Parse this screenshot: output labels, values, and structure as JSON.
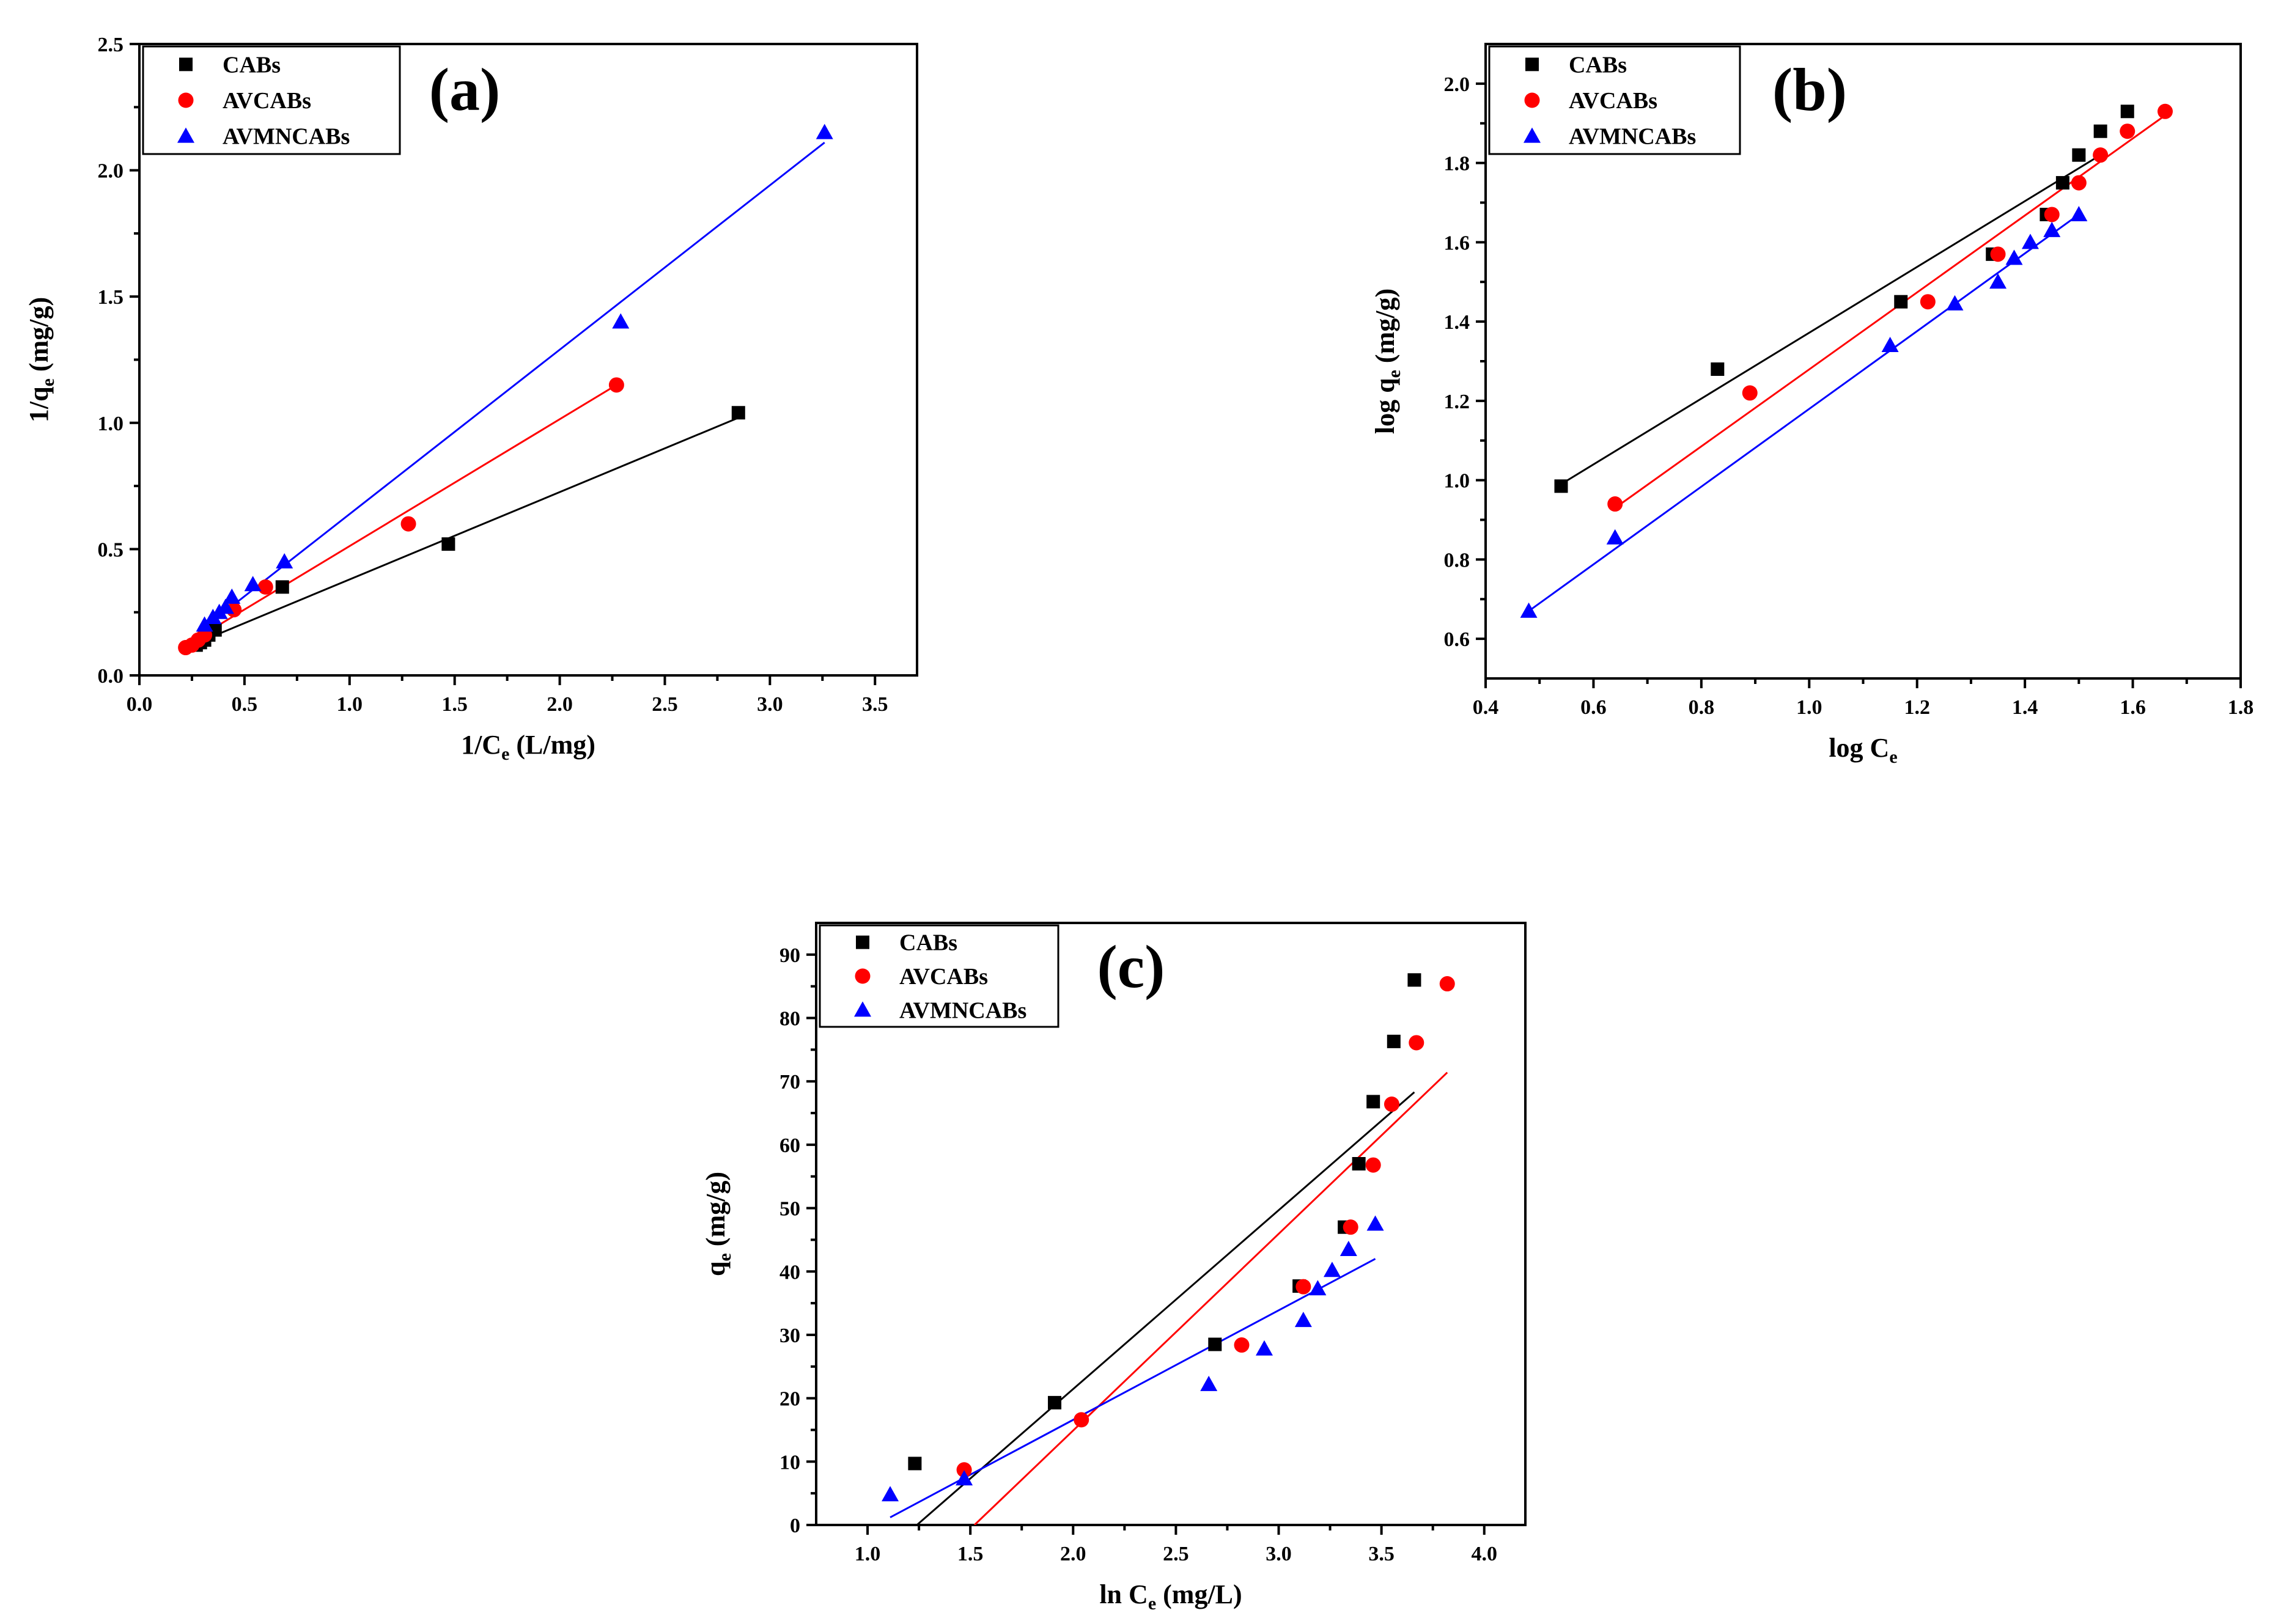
{
  "colors": {
    "CABs": "#000000",
    "AVCABs": "#ff0000",
    "AVMNCABs": "#0000ff"
  },
  "markers": {
    "CABs": "square",
    "AVCABs": "circle",
    "AVMNCABs": "triangle"
  },
  "chart_data": [
    {
      "id": "a",
      "type": "scatter",
      "panel_label": "(a)",
      "xlabel": "1/C",
      "xlabel_sub": "e",
      "xlabel_suffix": " (L/mg)",
      "ylabel": "1/q",
      "ylabel_sub": "e",
      "ylabel_suffix": " (mg/g)",
      "xlim": [
        0.0,
        3.7
      ],
      "ylim": [
        0.0,
        2.5
      ],
      "xticks": [
        0.0,
        0.5,
        1.0,
        1.5,
        2.0,
        2.5,
        3.0,
        3.5
      ],
      "yticks": [
        0.0,
        0.5,
        1.0,
        1.5,
        2.0,
        2.5
      ],
      "xtick_decimals": 1,
      "ytick_decimals": 1,
      "legend_position": "top-left",
      "series": [
        {
          "name": "CABs",
          "x": [
            0.27,
            0.29,
            0.31,
            0.33,
            0.36,
            0.68,
            1.47,
            2.85
          ],
          "y": [
            0.12,
            0.13,
            0.14,
            0.16,
            0.18,
            0.35,
            0.52,
            1.04
          ],
          "fit": [
            [
              0.22,
              0.11
            ],
            [
              2.85,
              1.02
            ]
          ]
        },
        {
          "name": "AVCABs",
          "x": [
            0.22,
            0.25,
            0.28,
            0.31,
            0.45,
            0.6,
            1.28,
            2.27
          ],
          "y": [
            0.11,
            0.12,
            0.14,
            0.16,
            0.26,
            0.35,
            0.6,
            1.15
          ],
          "fit": [
            [
              0.2,
              0.11
            ],
            [
              2.27,
              1.15
            ]
          ]
        },
        {
          "name": "AVMNCABs",
          "x": [
            0.31,
            0.35,
            0.38,
            0.41,
            0.44,
            0.54,
            0.69,
            2.29,
            3.26
          ],
          "y": [
            0.2,
            0.23,
            0.25,
            0.27,
            0.31,
            0.36,
            0.45,
            1.4,
            2.15
          ],
          "fit": [
            [
              0.28,
              0.17
            ],
            [
              3.26,
              2.11
            ]
          ]
        }
      ]
    },
    {
      "id": "b",
      "type": "scatter",
      "panel_label": "(b)",
      "xlabel": "log C",
      "xlabel_sub": "e",
      "xlabel_suffix": "",
      "ylabel": "log q",
      "ylabel_sub": "e",
      "ylabel_suffix": " (mg/g)",
      "xlim": [
        0.4,
        1.8
      ],
      "ylim": [
        0.5,
        2.1
      ],
      "xticks": [
        0.4,
        0.6,
        0.8,
        1.0,
        1.2,
        1.4,
        1.6,
        1.8
      ],
      "yticks": [
        0.6,
        0.8,
        1.0,
        1.2,
        1.4,
        1.6,
        1.8,
        2.0
      ],
      "xtick_decimals": 1,
      "ytick_decimals": 1,
      "legend_position": "top-left",
      "series": [
        {
          "name": "CABs",
          "x": [
            0.54,
            0.83,
            1.17,
            1.34,
            1.44,
            1.47,
            1.5,
            1.54,
            1.59
          ],
          "y": [
            0.985,
            1.28,
            1.45,
            1.57,
            1.67,
            1.75,
            1.82,
            1.88,
            1.93
          ],
          "fit": [
            [
              0.54,
              0.99
            ],
            [
              1.54,
              1.82
            ]
          ]
        },
        {
          "name": "AVCABs",
          "x": [
            0.64,
            0.89,
            1.22,
            1.35,
            1.45,
            1.5,
            1.54,
            1.59,
            1.66
          ],
          "y": [
            0.94,
            1.22,
            1.45,
            1.57,
            1.67,
            1.75,
            1.82,
            1.88,
            1.93
          ],
          "fit": [
            [
              0.64,
              0.93
            ],
            [
              1.66,
              1.92
            ]
          ]
        },
        {
          "name": "AVMNCABs",
          "x": [
            0.48,
            0.64,
            1.15,
            1.27,
            1.35,
            1.38,
            1.41,
            1.45,
            1.5
          ],
          "y": [
            0.67,
            0.855,
            1.34,
            1.445,
            1.5,
            1.56,
            1.6,
            1.63,
            1.67
          ],
          "fit": [
            [
              0.48,
              0.67
            ],
            [
              1.5,
              1.67
            ]
          ]
        }
      ]
    },
    {
      "id": "c",
      "type": "scatter",
      "panel_label": "(c)",
      "xlabel": "ln C",
      "xlabel_sub": "e",
      "xlabel_suffix": " (mg/L)",
      "ylabel": "q",
      "ylabel_sub": "e",
      "ylabel_suffix": " (mg/g)",
      "xlim": [
        0.75,
        4.2
      ],
      "ylim": [
        0,
        95
      ],
      "xticks": [
        1.0,
        1.5,
        2.0,
        2.5,
        3.0,
        3.5,
        4.0
      ],
      "yticks": [
        0,
        10,
        20,
        30,
        40,
        50,
        60,
        70,
        80,
        90
      ],
      "xtick_decimals": 1,
      "ytick_decimals": 0,
      "legend_position": "top-left",
      "series": [
        {
          "name": "CABs",
          "x": [
            1.23,
            1.91,
            2.69,
            3.1,
            3.32,
            3.39,
            3.46,
            3.56,
            3.66
          ],
          "y": [
            9.7,
            19.3,
            28.5,
            37.7,
            47.0,
            57.0,
            66.8,
            76.3,
            86.0
          ],
          "fit": [
            [
              1.24,
              0
            ],
            [
              3.66,
              68.3
            ]
          ]
        },
        {
          "name": "AVCABs",
          "x": [
            1.47,
            2.04,
            2.82,
            3.12,
            3.35,
            3.46,
            3.55,
            3.67,
            3.82
          ],
          "y": [
            8.7,
            16.6,
            28.4,
            37.6,
            47.0,
            56.8,
            66.4,
            76.1,
            85.4
          ],
          "fit": [
            [
              1.52,
              0
            ],
            [
              3.82,
              71.4
            ]
          ]
        },
        {
          "name": "AVMNCABs",
          "x": [
            1.11,
            1.47,
            2.66,
            2.93,
            3.12,
            3.19,
            3.26,
            3.34,
            3.47
          ],
          "y": [
            4.8,
            7.3,
            22.2,
            27.8,
            32.3,
            37.3,
            40.2,
            43.5,
            47.5
          ],
          "fit": [
            [
              1.11,
              1.2
            ],
            [
              3.47,
              42.0
            ]
          ]
        }
      ]
    }
  ]
}
